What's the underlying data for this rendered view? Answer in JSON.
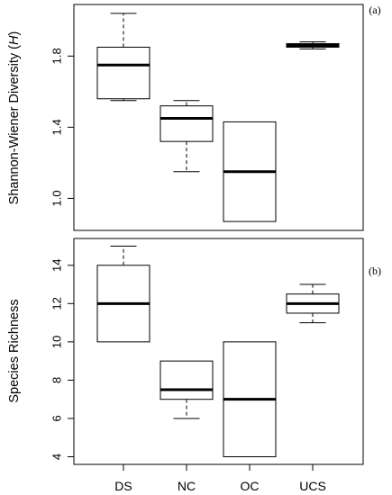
{
  "chart_data": [
    {
      "type": "box",
      "panel_label": "(a)",
      "ylabel_prefix": "Shannon-Wiener Diversity (",
      "ylabel_italic": "H",
      "ylabel_suffix": ")",
      "categories": [
        "DS",
        "NC",
        "OC",
        "UCS"
      ],
      "boxes": [
        {
          "category": "DS",
          "min": 1.55,
          "q1": 1.56,
          "median": 1.75,
          "q3": 1.85,
          "max": 2.04
        },
        {
          "category": "NC",
          "min": 1.15,
          "q1": 1.32,
          "median": 1.45,
          "q3": 1.52,
          "max": 1.55
        },
        {
          "category": "OC",
          "min": 0.87,
          "q1": 0.87,
          "median": 1.15,
          "q3": 1.43,
          "max": 1.43
        },
        {
          "category": "UCS",
          "min": 1.84,
          "q1": 1.85,
          "median": 1.86,
          "q3": 1.87,
          "max": 1.88
        }
      ],
      "yticks": [
        1.0,
        1.4,
        1.8
      ],
      "ytick_labels": [
        "1.0",
        "1.4",
        "1.8"
      ],
      "ylim": [
        0.82,
        2.09
      ]
    },
    {
      "type": "box",
      "panel_label": "(b)",
      "ylabel": "Species Richness",
      "categories": [
        "DS",
        "NC",
        "OC",
        "UCS"
      ],
      "boxes": [
        {
          "category": "DS",
          "min": 10,
          "q1": 10,
          "median": 12,
          "q3": 14,
          "max": 15
        },
        {
          "category": "NC",
          "min": 6,
          "q1": 7,
          "median": 7.5,
          "q3": 9,
          "max": 9
        },
        {
          "category": "OC",
          "min": 4,
          "q1": 4,
          "median": 7,
          "q3": 10,
          "max": 10
        },
        {
          "category": "UCS",
          "min": 11,
          "q1": 11.5,
          "median": 12,
          "q3": 12.5,
          "max": 13
        }
      ],
      "yticks": [
        4,
        6,
        8,
        10,
        12,
        14
      ],
      "ytick_labels": [
        "4",
        "6",
        "8",
        "10",
        "12",
        "14"
      ],
      "ylim": [
        3.6,
        15.4
      ]
    }
  ]
}
